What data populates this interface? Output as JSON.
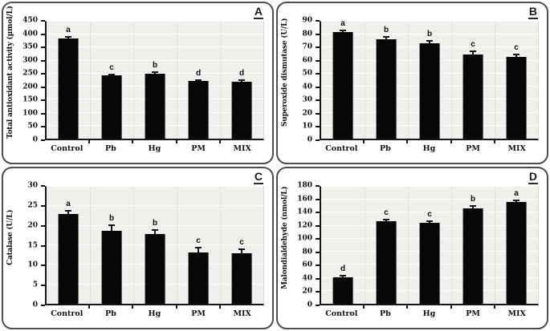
{
  "chart_data": [
    {
      "panel": "A",
      "type": "bar",
      "title": "",
      "ylabel": "Total antioxidant activity (μmol/L)",
      "xlabel": "",
      "categories": [
        "Control",
        "Pb",
        "Hg",
        "PM",
        "MIX"
      ],
      "values": [
        385,
        243,
        251,
        222,
        220
      ],
      "errors": [
        6,
        5,
        5,
        4,
        4
      ],
      "sig_letters": [
        "a",
        "c",
        "b",
        "d",
        "d"
      ],
      "ylim": [
        0,
        450
      ],
      "yticks": [
        0,
        50,
        100,
        150,
        200,
        250,
        300,
        350,
        400,
        450
      ],
      "grid": true,
      "legend": "none",
      "bar_color": "#070707",
      "plot_bg": "#f0efec"
    },
    {
      "panel": "B",
      "type": "bar",
      "title": "",
      "ylabel": "Superoxide dismutase (U/L)",
      "xlabel": "",
      "categories": [
        "Control",
        "Pb",
        "Hg",
        "PM",
        "MIX"
      ],
      "values": [
        82,
        76.5,
        73.5,
        65,
        63
      ],
      "errors": [
        1.5,
        1.5,
        1.5,
        2.5,
        1.5
      ],
      "sig_letters": [
        "a",
        "b",
        "b",
        "c",
        "c"
      ],
      "ylim": [
        0,
        90
      ],
      "yticks": [
        0,
        10,
        20,
        30,
        40,
        50,
        60,
        70,
        80,
        90
      ],
      "grid": true,
      "legend": "none",
      "bar_color": "#070707",
      "plot_bg": "#f0efec"
    },
    {
      "panel": "C",
      "type": "bar",
      "title": "",
      "ylabel": "Catalase (U/L)",
      "xlabel": "",
      "categories": [
        "Control",
        "Pb",
        "Hg",
        "PM",
        "MIX"
      ],
      "values": [
        23,
        18.7,
        17.8,
        13.1,
        12.9
      ],
      "errors": [
        0.8,
        1.5,
        1.2,
        1.2,
        1.1
      ],
      "sig_letters": [
        "a",
        "b",
        "b",
        "c",
        "c"
      ],
      "ylim": [
        0,
        30
      ],
      "yticks": [
        0,
        5,
        10,
        15,
        20,
        25,
        30
      ],
      "grid": true,
      "legend": "none",
      "bar_color": "#070707",
      "plot_bg": "#f0efec"
    },
    {
      "panel": "D",
      "type": "bar",
      "title": "",
      "ylabel": "Malondialdehyde (nmol/L)",
      "xlabel": "",
      "categories": [
        "Control",
        "Pb",
        "Hg",
        "PM",
        "MIX"
      ],
      "values": [
        41,
        127,
        125,
        147,
        157
      ],
      "errors": [
        2,
        2,
        2,
        3,
        2
      ],
      "sig_letters": [
        "d",
        "c",
        "c",
        "b",
        "a"
      ],
      "ylim": [
        0,
        180
      ],
      "yticks": [
        0,
        20,
        40,
        60,
        80,
        100,
        120,
        140,
        160,
        180
      ],
      "grid": true,
      "legend": "none",
      "bar_color": "#070707",
      "plot_bg": "#f0efec"
    }
  ]
}
